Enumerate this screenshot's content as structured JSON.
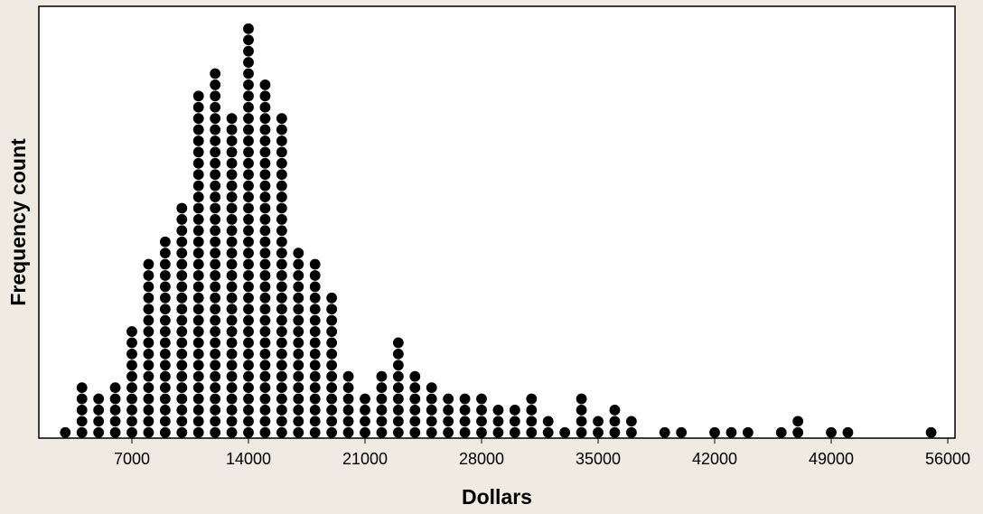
{
  "chart_data": {
    "type": "dotplot",
    "x_label": "Dollars",
    "y_label": "Frequency count",
    "x": [
      3000,
      4000,
      5000,
      6000,
      7000,
      8000,
      9000,
      10000,
      11000,
      12000,
      13000,
      14000,
      15000,
      16000,
      17000,
      18000,
      19000,
      20000,
      21000,
      22000,
      23000,
      24000,
      25000,
      26000,
      27000,
      28000,
      29000,
      30000,
      31000,
      32000,
      33000,
      34000,
      35000,
      36000,
      37000,
      39000,
      40000,
      42000,
      43000,
      44000,
      46000,
      47000,
      49000,
      50000,
      55000
    ],
    "counts": [
      1,
      5,
      4,
      5,
      10,
      16,
      18,
      21,
      31,
      33,
      29,
      37,
      32,
      29,
      17,
      16,
      13,
      6,
      4,
      6,
      9,
      6,
      5,
      4,
      4,
      4,
      3,
      3,
      4,
      2,
      1,
      4,
      2,
      3,
      2,
      1,
      1,
      1,
      1,
      1,
      1,
      2,
      1,
      1,
      1
    ],
    "color": "#000000",
    "xlim": [
      1411,
      56433
    ],
    "ylim": [
      0,
      38.5
    ],
    "xticks": [
      7000,
      14000,
      21000,
      28000,
      35000,
      42000,
      49000,
      56000
    ]
  }
}
